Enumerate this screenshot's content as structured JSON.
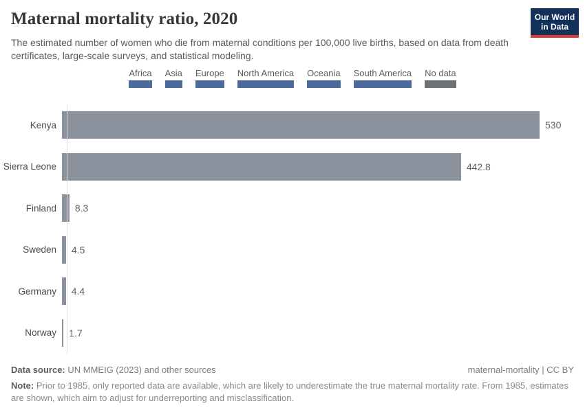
{
  "header": {
    "title": "Maternal mortality ratio, 2020",
    "subtitle": "The estimated number of women who die from maternal conditions per 100,000 live births, based on data from death certificates, large-scale surveys, and statistical modeling.",
    "logo_line1": "Our World",
    "logo_line2": "in Data",
    "logo_bg_color": "#12305a",
    "logo_accent_color": "#d93a34"
  },
  "legend": {
    "items": [
      {
        "label": "Africa",
        "color": "#4c6a9c"
      },
      {
        "label": "Asia",
        "color": "#4c6a9c"
      },
      {
        "label": "Europe",
        "color": "#4c6a9c"
      },
      {
        "label": "North America",
        "color": "#4c6a9c"
      },
      {
        "label": "Oceania",
        "color": "#4c6a9c"
      },
      {
        "label": "South America",
        "color": "#4c6a9c"
      },
      {
        "label": "No data",
        "color": "#6e7176"
      }
    ]
  },
  "chart_data": {
    "type": "bar",
    "orientation": "horizontal",
    "title": "Maternal mortality ratio, 2020",
    "categories": [
      "Kenya",
      "Sierra Leone",
      "Finland",
      "Sweden",
      "Germany",
      "Norway"
    ],
    "values": [
      530,
      442.8,
      8.3,
      4.5,
      4.4,
      1.7
    ],
    "value_labels": [
      "530",
      "442.8",
      "8.3",
      "4.5",
      "4.4",
      "1.7"
    ],
    "bar_color": "#8b929e",
    "xlabel": "",
    "ylabel": "",
    "xlim": [
      0,
      575
    ],
    "grid": false,
    "legend_position": "top-center"
  },
  "footer": {
    "data_source_label": "Data source:",
    "data_source_text": " UN MMEIG (2023) and other sources",
    "license": "maternal-mortality | CC BY",
    "note_label": "Note:",
    "note_text": " Prior to 1985, only reported data are available, which are likely to underestimate the true maternal mortality rate. From 1985, estimates are shown, which aim to adjust for underreporting and misclassification."
  }
}
